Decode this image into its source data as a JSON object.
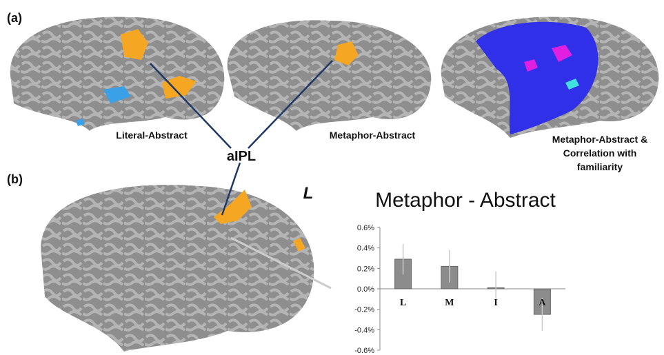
{
  "panel_labels": [
    "(a)",
    "(b)"
  ],
  "brain_labels": [
    "Literal-Abstract",
    "Metaphor-Abstract",
    "Metaphor-Abstract &",
    "Correlation with",
    "familiarity"
  ],
  "region_label": "aIPL",
  "hemisphere": "L",
  "chart_data": {
    "type": "bar",
    "title": "Metaphor - Abstract",
    "categories": [
      "L",
      "M",
      "I",
      "A"
    ],
    "values": [
      0.29,
      0.22,
      0.01,
      -0.25
    ],
    "errors": [
      0.15,
      0.16,
      0.16,
      0.16
    ],
    "color": "#8c8c8c",
    "ylim": [
      -0.6,
      0.6
    ],
    "yticks": [
      {
        "value": -0.6,
        "label": "-0.6%"
      },
      {
        "value": -0.4,
        "label": "-0.4%"
      },
      {
        "value": -0.2,
        "label": "-0.2%"
      },
      {
        "value": 0,
        "label": "0.0%"
      },
      {
        "value": 0.2,
        "label": "0.2%"
      },
      {
        "value": 0.4,
        "label": "0.4%"
      },
      {
        "value": 0.6,
        "label": "0.6%"
      }
    ]
  }
}
